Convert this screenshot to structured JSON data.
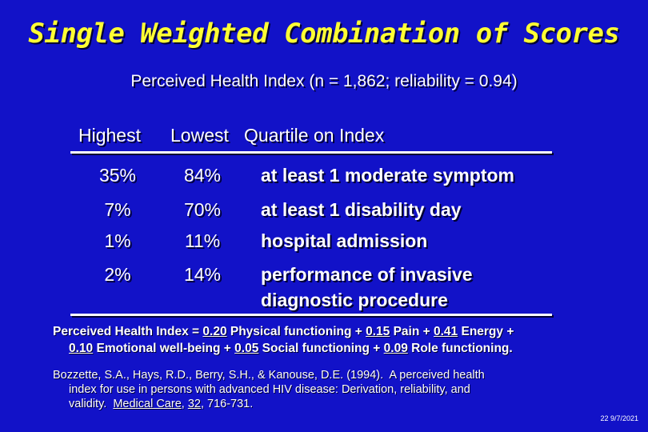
{
  "title": "Single Weighted Combination of Scores",
  "subtitle": "Perceived Health Index (n = 1,862; reliability = 0.94)",
  "table": {
    "header_highest": "Highest",
    "header_lowest_quartile": "Lowest   Quartile on Index",
    "rows": [
      {
        "highest": "35%",
        "lowest": "84%",
        "label": "at least 1 moderate symptom"
      },
      {
        "highest": "7%",
        "lowest": "70%",
        "label": "at least 1 disability day"
      },
      {
        "highest": "1%",
        "lowest": "11%",
        "label": "hospital admission"
      },
      {
        "highest": "2%",
        "lowest": "14%",
        "label": "performance of invasive",
        "label_line2": "diagnostic procedure"
      }
    ]
  },
  "formula": {
    "prefix": "Perceived Health Index = ",
    "w1": "0.20",
    "t1": " Physical functioning + ",
    "w2": "0.15",
    "t2": " Pain + ",
    "w3": "0.41",
    "t3": " Energy +",
    "w4": "0.10",
    "t4": " Emotional well-being + ",
    "w5": "0.05",
    "t5": " Social functioning + ",
    "w6": "0.09",
    "t6": " Role functioning."
  },
  "reference": {
    "line1": "Bozzette, S.A., Hays, R.D., Berry, S.H., & Kanouse, D.E. (1994).  A perceived health",
    "line2": "index for use in persons with advanced HIV disease: Derivation, reliability, and",
    "line3_prefix": "validity.  ",
    "journal": "Medical Care",
    "sep": ", ",
    "volume": "32",
    "pages": ", 716-731."
  },
  "footer_date": "22 9/7/2021",
  "colors": {
    "background": "#1212c8",
    "title": "#ffff33",
    "text": "#ffffff"
  }
}
